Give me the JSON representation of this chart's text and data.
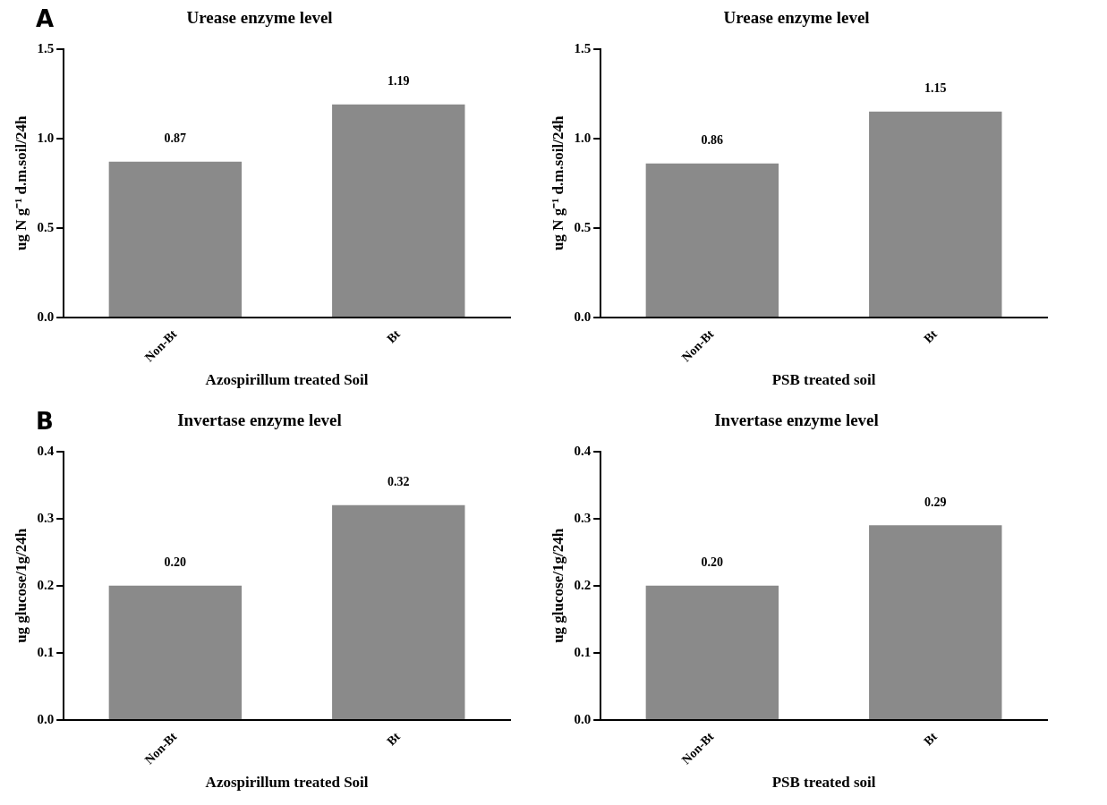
{
  "chart_data": [
    {
      "type": "bar",
      "title": "Urease enzyme level",
      "ylabel": "ug N g⁻¹ d.m.soil/24h",
      "xlabel": "Azospirillum treated Soil",
      "annotations": [
        "A"
      ],
      "categories": [
        "Non-Bt",
        "Bt"
      ],
      "values": [
        0.87,
        1.19
      ],
      "value_labels": [
        "0.87",
        "1.19"
      ],
      "color": "#8a8a8a",
      "ylim": [
        0,
        1.5
      ],
      "yticks": [
        {
          "value": 0,
          "label": "0.0"
        },
        {
          "value": 0.5,
          "label": "0.5"
        },
        {
          "value": 1,
          "label": "1.0"
        },
        {
          "value": 1.5,
          "label": "1.5"
        }
      ],
      "grid": false,
      "legend": false
    },
    {
      "type": "bar",
      "title": "Urease enzyme level",
      "ylabel": "ug N g⁻¹ d.m.soil/24h",
      "xlabel": "PSB treated soil",
      "categories": [
        "Non-Bt",
        "Bt"
      ],
      "values": [
        0.86,
        1.15
      ],
      "value_labels": [
        "0.86",
        "1.15"
      ],
      "color": "#8a8a8a",
      "ylim": [
        0,
        1.5
      ],
      "yticks": [
        {
          "value": 0,
          "label": "0.0"
        },
        {
          "value": 0.5,
          "label": "0.5"
        },
        {
          "value": 1,
          "label": "1.0"
        },
        {
          "value": 1.5,
          "label": "1.5"
        }
      ],
      "grid": false,
      "legend": false
    },
    {
      "type": "bar",
      "title": "Invertase enzyme level",
      "ylabel": "ug glucose/1g/24h",
      "xlabel": "Azospirillum treated Soil",
      "annotations": [
        "B"
      ],
      "categories": [
        "Non-Bt",
        "Bt"
      ],
      "values": [
        0.2,
        0.32
      ],
      "value_labels": [
        "0.20",
        "0.32"
      ],
      "color": "#8a8a8a",
      "ylim": [
        0,
        0.4
      ],
      "yticks": [
        {
          "value": 0,
          "label": "0.0"
        },
        {
          "value": 0.1,
          "label": "0.1"
        },
        {
          "value": 0.2,
          "label": "0.2"
        },
        {
          "value": 0.3,
          "label": "0.3"
        },
        {
          "value": 0.4,
          "label": "0.4"
        }
      ],
      "grid": false,
      "legend": false
    },
    {
      "type": "bar",
      "title": "Invertase enzyme level",
      "ylabel": "ug glucose/1g/24h",
      "xlabel": "PSB treated soil",
      "categories": [
        "Non-Bt",
        "Bt"
      ],
      "values": [
        0.2,
        0.29
      ],
      "value_labels": [
        "0.20",
        "0.29"
      ],
      "color": "#8a8a8a",
      "ylim": [
        0,
        0.4
      ],
      "yticks": [
        {
          "value": 0,
          "label": "0.0"
        },
        {
          "value": 0.1,
          "label": "0.1"
        },
        {
          "value": 0.2,
          "label": "0.2"
        },
        {
          "value": 0.3,
          "label": "0.3"
        },
        {
          "value": 0.4,
          "label": "0.4"
        }
      ],
      "grid": false,
      "legend": false
    }
  ]
}
